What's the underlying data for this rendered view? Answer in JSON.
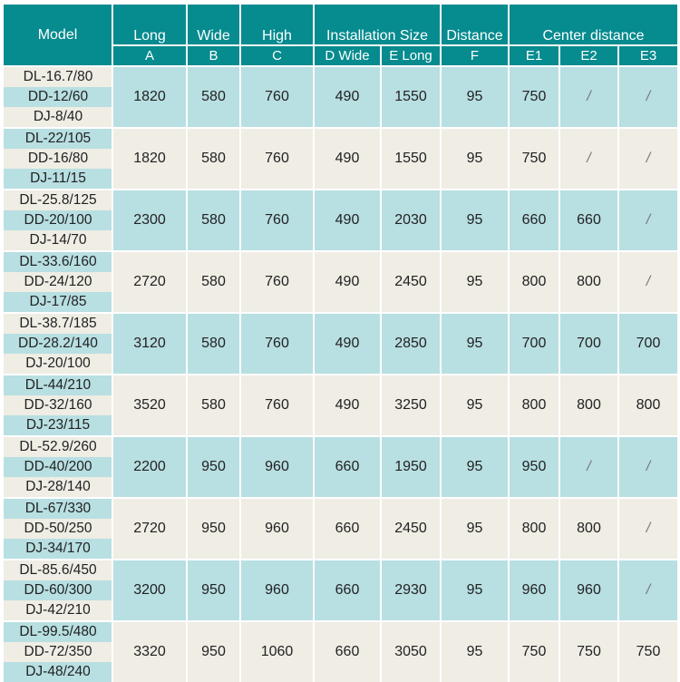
{
  "header": {
    "model": "Model",
    "groups": [
      "Long",
      "Wide",
      "High",
      "Installation Size",
      "Distance",
      "Center distance"
    ],
    "subs": [
      "A",
      "B",
      "C",
      "D Wide",
      "E Long",
      "F",
      "E1",
      "E2",
      "E3"
    ]
  },
  "colors": {
    "header": "#068b8f",
    "blue": "#b8dfe2",
    "beige": "#efede4"
  },
  "rows": [
    {
      "models": [
        "DL-16.7/80",
        "DD-12/60",
        "DJ-8/40"
      ],
      "values": [
        "1820",
        "580",
        "760",
        "490",
        "1550",
        "95",
        "750",
        "/",
        "/"
      ]
    },
    {
      "models": [
        "DL-22/105",
        "DD-16/80",
        "DJ-11/15"
      ],
      "values": [
        "1820",
        "580",
        "760",
        "490",
        "1550",
        "95",
        "750",
        "/",
        "/"
      ]
    },
    {
      "models": [
        "DL-25.8/125",
        "DD-20/100",
        "DJ-14/70"
      ],
      "values": [
        "2300",
        "580",
        "760",
        "490",
        "2030",
        "95",
        "660",
        "660",
        "/"
      ]
    },
    {
      "models": [
        "DL-33.6/160",
        "DD-24/120",
        "DJ-17/85"
      ],
      "values": [
        "2720",
        "580",
        "760",
        "490",
        "2450",
        "95",
        "800",
        "800",
        "/"
      ]
    },
    {
      "models": [
        "DL-38.7/185",
        "DD-28.2/140",
        "DJ-20/100"
      ],
      "values": [
        "3120",
        "580",
        "760",
        "490",
        "2850",
        "95",
        "700",
        "700",
        "700"
      ]
    },
    {
      "models": [
        "DL-44/210",
        "DD-32/160",
        "DJ-23/115"
      ],
      "values": [
        "3520",
        "580",
        "760",
        "490",
        "3250",
        "95",
        "800",
        "800",
        "800"
      ]
    },
    {
      "models": [
        "DL-52.9/260",
        "DD-40/200",
        "DJ-28/140"
      ],
      "values": [
        "2200",
        "950",
        "960",
        "660",
        "1950",
        "95",
        "950",
        "/",
        "/"
      ]
    },
    {
      "models": [
        "DL-67/330",
        "DD-50/250",
        "DJ-34/170"
      ],
      "values": [
        "2720",
        "950",
        "960",
        "660",
        "2450",
        "95",
        "800",
        "800",
        "/"
      ]
    },
    {
      "models": [
        "DL-85.6/450",
        "DD-60/300",
        "DJ-42/210"
      ],
      "values": [
        "3200",
        "950",
        "960",
        "660",
        "2930",
        "95",
        "960",
        "960",
        "/"
      ]
    },
    {
      "models": [
        "DL-99.5/480",
        "DD-72/350",
        "DJ-48/240"
      ],
      "values": [
        "3320",
        "950",
        "1060",
        "660",
        "3050",
        "95",
        "750",
        "750",
        "750"
      ]
    }
  ]
}
